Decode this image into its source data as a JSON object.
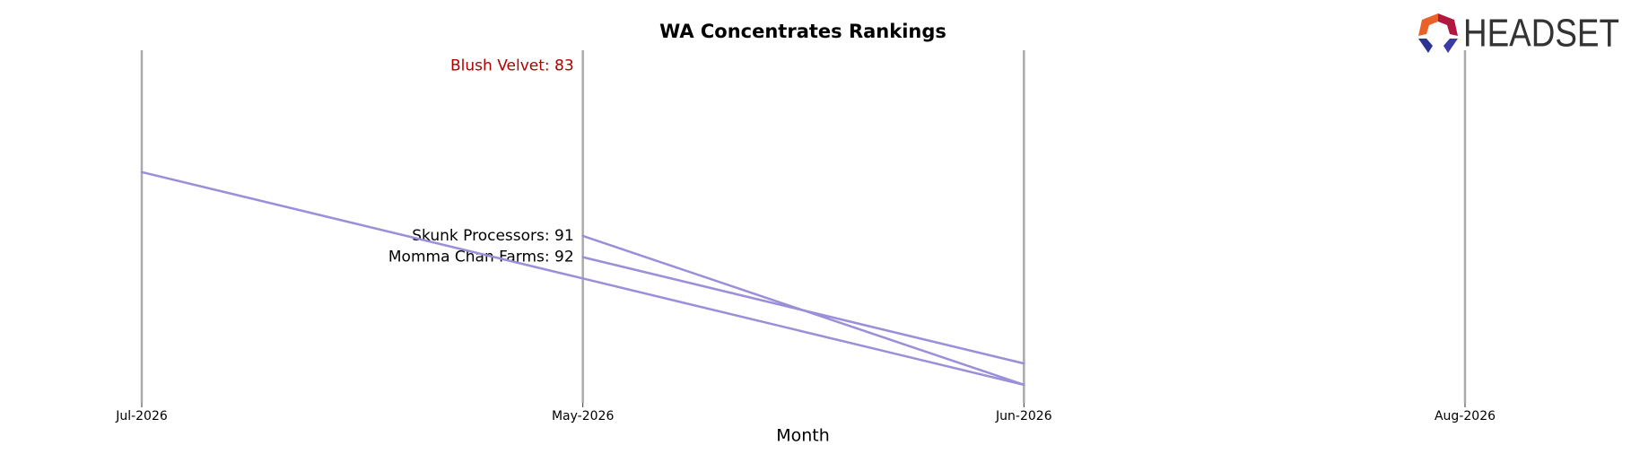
{
  "chart_data": {
    "type": "line",
    "title": "WA Concentrates Rankings",
    "x_label": "Month",
    "logo_text": "HEADSET",
    "categories": [
      "Jul-2026",
      "May-2026",
      "Jun-2026",
      "Aug-2026"
    ],
    "series": [
      {
        "label": "Blush Velvet: 83",
        "color": "#9a8fd9",
        "label_color": "#b00000",
        "values": [
          null,
          83,
          null,
          null
        ]
      },
      {
        "label": "Skunk Processors: 91",
        "color": "#9a8fd9",
        "label_color": "#000000",
        "values": [
          null,
          91,
          98,
          null
        ]
      },
      {
        "label": "Momma Chan Farms: 92",
        "color": "#9a8fd9",
        "label_color": "#000000",
        "values": [
          null,
          92,
          97,
          null
        ]
      },
      {
        "color": "#9a8fd9",
        "values": [
          88,
          93,
          98,
          null
        ]
      }
    ],
    "ylim": [
      98.85,
      82.27
    ],
    "grid": true
  }
}
